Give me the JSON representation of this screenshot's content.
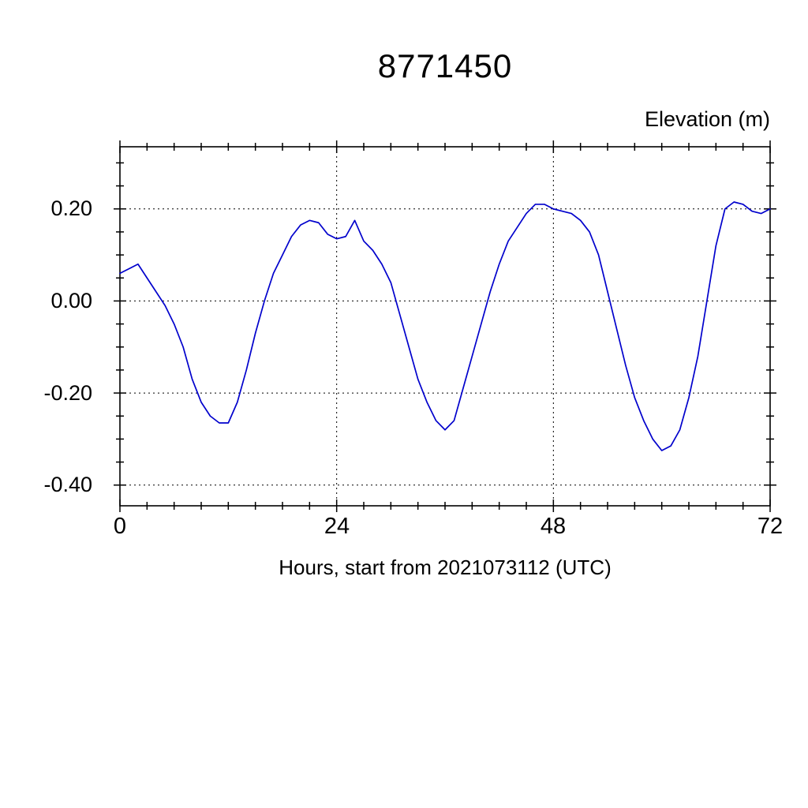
{
  "chart_data": {
    "type": "line",
    "title": "8771450",
    "ylabel": "Elevation (m)",
    "xlabel": "Hours, start from 2021073112 (UTC)",
    "xlim": [
      0,
      72
    ],
    "ylim": [
      -0.445,
      0.335
    ],
    "xticks": [
      0,
      24,
      48,
      72
    ],
    "xtick_labels": [
      "0",
      "24",
      "48",
      "72"
    ],
    "x_minor_step": 3,
    "yticks": [
      0.2,
      0.0,
      -0.2,
      -0.4
    ],
    "ytick_labels": [
      "0.20",
      "0.00",
      "-0.20",
      "-0.40"
    ],
    "y_minor_step": 0.05,
    "x_gridlines": [
      24,
      48
    ],
    "y_gridlines": [
      0.2,
      0.0,
      -0.2,
      -0.4
    ],
    "grid": "dashed",
    "legend": "none",
    "line_color": "#0000cc",
    "axis_color": "#000000",
    "series": [
      {
        "name": "elevation",
        "x": [
          0,
          1,
          2,
          3,
          4,
          5,
          6,
          7,
          8,
          9,
          10,
          11,
          12,
          13,
          14,
          15,
          16,
          17,
          18,
          19,
          20,
          21,
          22,
          23,
          24,
          25,
          26,
          27,
          28,
          29,
          30,
          31,
          32,
          33,
          34,
          35,
          36,
          37,
          38,
          39,
          40,
          41,
          42,
          43,
          44,
          45,
          46,
          47,
          48,
          49,
          50,
          51,
          52,
          53,
          54,
          55,
          56,
          57,
          58,
          59,
          60,
          61,
          62,
          63,
          64,
          65,
          66,
          67,
          68,
          69,
          70,
          71,
          72
        ],
        "y": [
          0.06,
          0.07,
          0.08,
          0.05,
          0.02,
          -0.01,
          -0.05,
          -0.1,
          -0.17,
          -0.22,
          -0.25,
          -0.265,
          -0.265,
          -0.22,
          -0.15,
          -0.07,
          0.0,
          0.06,
          0.1,
          0.14,
          0.165,
          0.175,
          0.17,
          0.145,
          0.135,
          0.14,
          0.175,
          0.13,
          0.11,
          0.08,
          0.04,
          -0.03,
          -0.1,
          -0.17,
          -0.22,
          -0.26,
          -0.28,
          -0.26,
          -0.19,
          -0.12,
          -0.05,
          0.02,
          0.08,
          0.13,
          0.16,
          0.19,
          0.21,
          0.21,
          0.2,
          0.195,
          0.19,
          0.175,
          0.15,
          0.1,
          0.02,
          -0.06,
          -0.14,
          -0.21,
          -0.26,
          -0.3,
          -0.325,
          -0.315,
          -0.28,
          -0.21,
          -0.12,
          0.0,
          0.12,
          0.2,
          0.215,
          0.21,
          0.195,
          0.19,
          0.2
        ]
      }
    ]
  }
}
